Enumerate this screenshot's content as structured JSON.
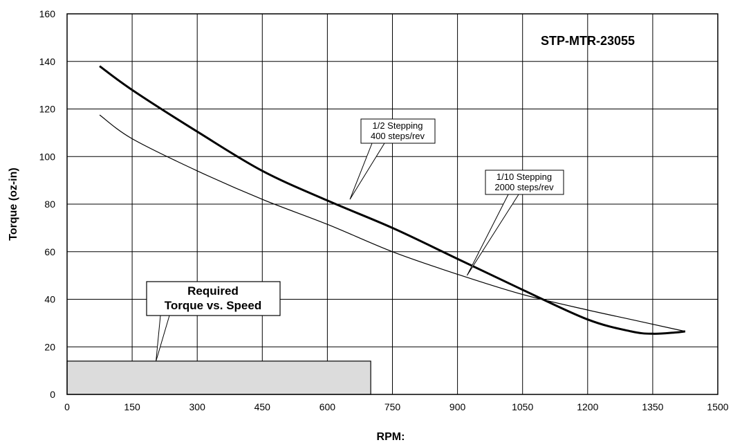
{
  "chart_data": {
    "type": "line",
    "title": "STP-MTR-23055",
    "xlabel": "RPM:",
    "ylabel": "Torque (oz-in)",
    "xlim": [
      0,
      1500
    ],
    "ylim": [
      0,
      160
    ],
    "x_ticks": [
      "0",
      "150",
      "300",
      "450",
      "600",
      "750",
      "900",
      "1050",
      "1200",
      "1350",
      "1500"
    ],
    "y_ticks": [
      "0",
      "20",
      "40",
      "60",
      "80",
      "100",
      "120",
      "140",
      "160"
    ],
    "grid": true,
    "series": [
      {
        "name": "1/2 Stepping 400 steps/rev",
        "x": [
          75,
          150,
          300,
          450,
          600,
          750,
          900,
          1050,
          1200,
          1300,
          1350,
          1400,
          1425
        ],
        "y": [
          138,
          128,
          110.5,
          94,
          81.5,
          70,
          57,
          44,
          31.5,
          26.5,
          25.5,
          26,
          26.5
        ]
      },
      {
        "name": "1/10 Stepping 2000 steps/rev",
        "x": [
          75,
          150,
          300,
          450,
          600,
          750,
          900,
          1050,
          1200,
          1300,
          1400,
          1425
        ],
        "y": [
          117.5,
          107.5,
          94,
          82,
          71.5,
          60,
          50.5,
          42,
          35.5,
          31.5,
          27.5,
          26.5
        ]
      }
    ],
    "required_region": {
      "x": [
        0,
        700
      ],
      "y": [
        0,
        14
      ]
    },
    "annotations": {
      "half_step": [
        "1/2 Stepping",
        "400 steps/rev"
      ],
      "tenth_step": [
        "1/10 Stepping",
        "2000 steps/rev"
      ],
      "required": [
        "Required",
        "Torque vs. Speed"
      ]
    }
  }
}
